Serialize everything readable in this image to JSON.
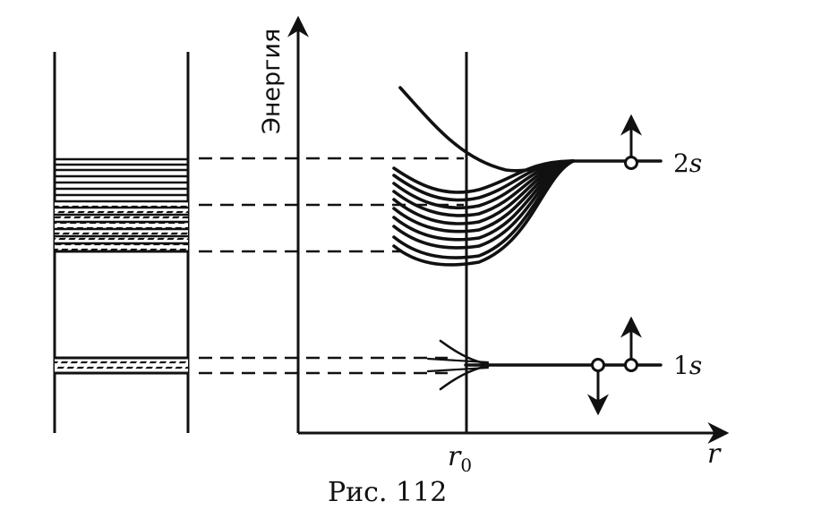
{
  "figure": {
    "y_axis_label": "Энергия",
    "x_axis_label": "r",
    "x_tick_label": "r",
    "x_tick_subscript": "0",
    "level_2s": {
      "number": "2",
      "letter": "s"
    },
    "level_1s": {
      "number": "1",
      "letter": "s"
    },
    "caption": "Рис. 112"
  }
}
